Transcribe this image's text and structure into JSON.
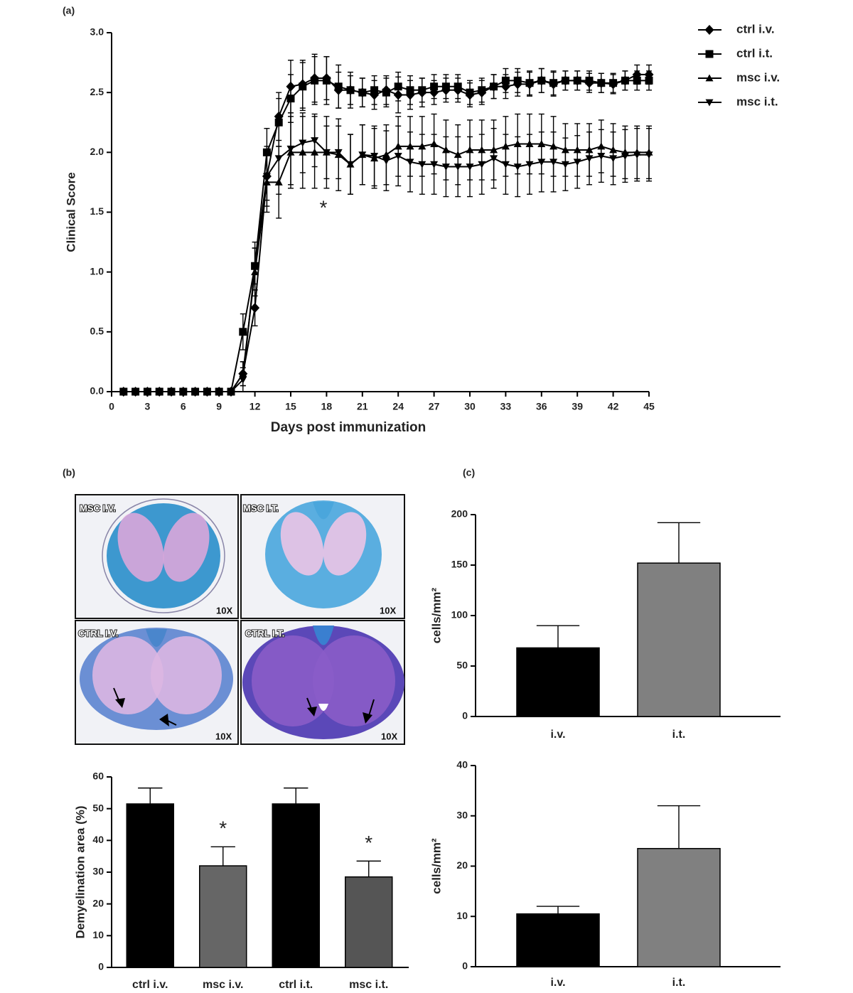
{
  "panels": [
    "(a)",
    "(b)",
    "(c)"
  ],
  "micrographs": [
    {
      "label": "MSC I.V.",
      "magnification": "10X"
    },
    {
      "label": "MSC I.T.",
      "magnification": "10X"
    },
    {
      "label": "CTRL I.V.",
      "magnification": "10X"
    },
    {
      "label": "CTRL I.T.",
      "magnification": "10X"
    }
  ],
  "chart_data": [
    {
      "type": "line",
      "x_label": "Days post immunization",
      "y_label": "Clinical Score",
      "annotation": "*",
      "x": [
        1,
        2,
        3,
        4,
        5,
        6,
        7,
        8,
        9,
        10,
        11,
        12,
        13,
        14,
        15,
        16,
        17,
        18,
        19,
        20,
        21,
        22,
        23,
        24,
        25,
        26,
        27,
        28,
        29,
        30,
        31,
        32,
        33,
        34,
        35,
        36,
        37,
        38,
        39,
        40,
        41,
        42,
        43,
        44,
        45
      ],
      "xlim": [
        0,
        45
      ],
      "xticks": [
        0,
        3,
        6,
        9,
        12,
        15,
        18,
        21,
        24,
        27,
        30,
        33,
        36,
        39,
        42,
        45
      ],
      "ylim": [
        0,
        3
      ],
      "yticks": [
        {
          "value": 0,
          "label": "0.0"
        },
        0.5,
        {
          "value": 1,
          "label": "1.0"
        },
        1.5,
        {
          "value": 2,
          "label": "2.0"
        },
        2.5,
        {
          "value": 3,
          "label": "3.0"
        }
      ],
      "series": [
        {
          "name": "ctrl i.v.",
          "color": "#000000",
          "marker": "diamond",
          "values": [
            0,
            0,
            0,
            0,
            0,
            0,
            0,
            0,
            0,
            0,
            0.15,
            0.7,
            1.8,
            2.3,
            2.55,
            2.57,
            2.62,
            2.62,
            2.52,
            2.52,
            2.5,
            2.48,
            2.52,
            2.48,
            2.48,
            2.5,
            2.5,
            2.52,
            2.52,
            2.48,
            2.5,
            2.55,
            2.55,
            2.57,
            2.57,
            2.6,
            2.57,
            2.6,
            2.6,
            2.58,
            2.58,
            2.57,
            2.6,
            2.65,
            2.65
          ],
          "errors": [
            0,
            0,
            0,
            0,
            0,
            0,
            0,
            0,
            0,
            0,
            0.1,
            0.15,
            0.2,
            0.2,
            0.22,
            0.2,
            0.2,
            0.18,
            0.15,
            0.12,
            0.12,
            0.12,
            0.12,
            0.15,
            0.12,
            0.12,
            0.1,
            0.1,
            0.1,
            0.1,
            0.1,
            0.1,
            0.1,
            0.1,
            0.1,
            0.1,
            0.1,
            0.08,
            0.08,
            0.08,
            0.08,
            0.08,
            0.08,
            0.08,
            0.08
          ]
        },
        {
          "name": "ctrl i.t.",
          "color": "#000000",
          "marker": "square",
          "values": [
            0,
            0,
            0,
            0,
            0,
            0,
            0,
            0,
            0,
            0,
            0.5,
            1.05,
            2.0,
            2.25,
            2.45,
            2.55,
            2.6,
            2.6,
            2.55,
            2.52,
            2.5,
            2.52,
            2.5,
            2.55,
            2.52,
            2.52,
            2.55,
            2.55,
            2.55,
            2.5,
            2.52,
            2.55,
            2.6,
            2.6,
            2.58,
            2.6,
            2.58,
            2.6,
            2.6,
            2.6,
            2.58,
            2.58,
            2.6,
            2.6,
            2.6
          ],
          "errors": [
            0,
            0,
            0,
            0,
            0,
            0,
            0,
            0,
            0,
            0,
            0.15,
            0.15,
            0.2,
            0.2,
            0.2,
            0.2,
            0.2,
            0.2,
            0.18,
            0.15,
            0.12,
            0.12,
            0.12,
            0.12,
            0.12,
            0.1,
            0.1,
            0.1,
            0.1,
            0.1,
            0.1,
            0.1,
            0.1,
            0.1,
            0.1,
            0.1,
            0.1,
            0.08,
            0.08,
            0.08,
            0.08,
            0.08,
            0.08,
            0.08,
            0.08
          ]
        },
        {
          "name": "msc i.v.",
          "color": "#000000",
          "marker": "triangle-up",
          "values": [
            0,
            0,
            0,
            0,
            0,
            0,
            0,
            0,
            0,
            0,
            0.15,
            1.0,
            1.75,
            1.75,
            2.0,
            2.0,
            2.0,
            2.0,
            1.98,
            1.9,
            1.98,
            1.95,
            1.98,
            2.05,
            2.05,
            2.05,
            2.07,
            2.02,
            1.98,
            2.02,
            2.02,
            2.02,
            2.05,
            2.07,
            2.07,
            2.07,
            2.05,
            2.02,
            2.02,
            2.02,
            2.05,
            2.02,
            2.0,
            2.0,
            2.0
          ],
          "errors": [
            0,
            0,
            0,
            0,
            0,
            0,
            0,
            0,
            0,
            0,
            0.1,
            0.2,
            0.25,
            0.3,
            0.3,
            0.3,
            0.3,
            0.3,
            0.3,
            0.25,
            0.25,
            0.25,
            0.25,
            0.25,
            0.25,
            0.25,
            0.25,
            0.25,
            0.25,
            0.25,
            0.25,
            0.25,
            0.25,
            0.25,
            0.25,
            0.25,
            0.25,
            0.22,
            0.22,
            0.22,
            0.22,
            0.22,
            0.22,
            0.22,
            0.22
          ]
        },
        {
          "name": "msc i.t.",
          "color": "#000000",
          "marker": "triangle-down",
          "values": [
            0,
            0,
            0,
            0,
            0,
            0,
            0,
            0,
            0,
            0,
            0.1,
            1.05,
            1.8,
            1.95,
            2.03,
            2.08,
            2.1,
            2.0,
            2.0,
            1.9,
            1.98,
            1.97,
            1.93,
            1.97,
            1.92,
            1.9,
            1.9,
            1.88,
            1.88,
            1.88,
            1.9,
            1.95,
            1.9,
            1.88,
            1.9,
            1.92,
            1.92,
            1.9,
            1.92,
            1.95,
            1.97,
            1.95,
            1.97,
            1.98,
            1.98
          ],
          "errors": [
            0,
            0,
            0,
            0,
            0,
            0,
            0,
            0,
            0,
            0,
            0.1,
            0.2,
            0.25,
            0.3,
            0.3,
            0.25,
            0.22,
            0.22,
            0.22,
            0.25,
            0.25,
            0.25,
            0.25,
            0.25,
            0.25,
            0.25,
            0.25,
            0.25,
            0.25,
            0.25,
            0.25,
            0.25,
            0.25,
            0.25,
            0.25,
            0.25,
            0.25,
            0.22,
            0.22,
            0.22,
            0.22,
            0.22,
            0.22,
            0.22,
            0.22
          ]
        }
      ]
    },
    {
      "type": "bar",
      "y_label": "Demyelination area (%)",
      "categories": [
        "ctrl i.v.",
        "msc i.v.",
        "ctrl i.t.",
        "msc  i.t."
      ],
      "values": [
        51.5,
        32,
        51.5,
        28.5
      ],
      "errors": [
        5,
        6,
        5,
        5
      ],
      "colors": [
        "#000000",
        "#666666",
        "#000000",
        "#555555"
      ],
      "significance": [
        null,
        "*",
        null,
        "*"
      ],
      "ylim": [
        0,
        60
      ],
      "yticks": [
        0,
        10,
        20,
        30,
        40,
        50,
        60
      ]
    },
    {
      "type": "bar",
      "y_label": "cells/mm²",
      "categories": [
        "i.v.",
        "i.t."
      ],
      "values": [
        68,
        152
      ],
      "errors": [
        22,
        40
      ],
      "colors": [
        "#000000",
        "#808080"
      ],
      "ylim": [
        0,
        200
      ],
      "yticks": [
        0,
        50,
        100,
        150,
        200
      ]
    },
    {
      "type": "bar",
      "y_label": "cells/mm²",
      "categories": [
        "i.v.",
        "i.t."
      ],
      "values": [
        10.5,
        23.5
      ],
      "errors": [
        1.5,
        8.5
      ],
      "colors": [
        "#000000",
        "#808080"
      ],
      "ylim": [
        0,
        40
      ],
      "yticks": [
        0,
        10,
        20,
        30,
        40
      ]
    }
  ]
}
